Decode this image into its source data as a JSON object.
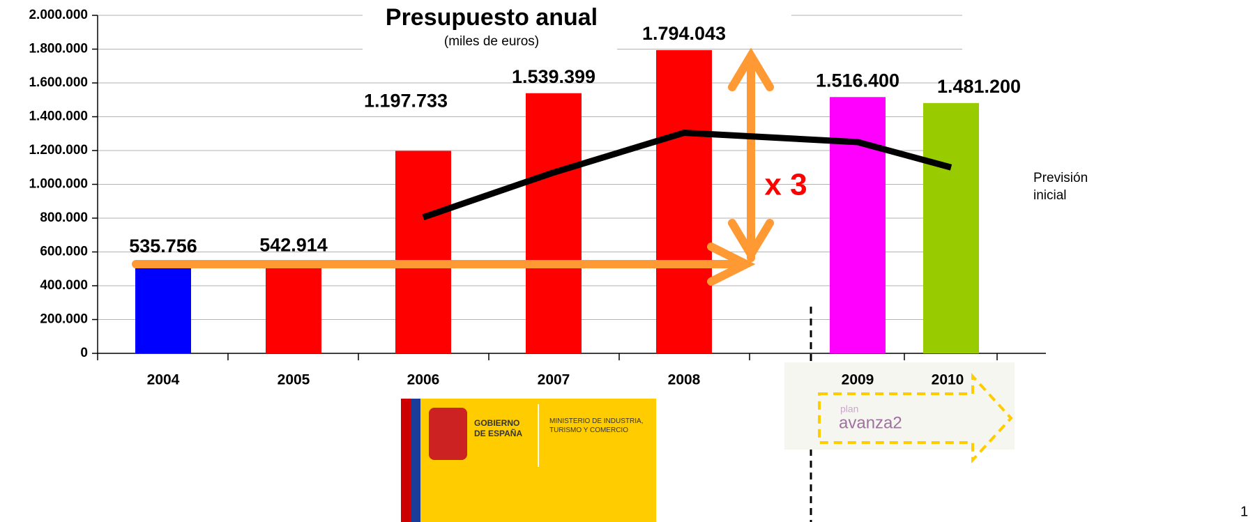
{
  "chart_data": {
    "type": "bar",
    "title": "Presupuesto anual",
    "subtitle": "(miles de euros)",
    "categories": [
      "2004",
      "2005",
      "2006",
      "2007",
      "2008",
      "2009",
      "2010"
    ],
    "values": [
      535756,
      542914,
      1197733,
      1539399,
      1794043,
      1516400,
      1481200
    ],
    "value_labels": [
      "535.756",
      "542.914",
      "1.197.733",
      "1.539.399",
      "1.794.043",
      "1.516.400",
      "1.481.200"
    ],
    "colors": [
      "#0000ff",
      "#ff0000",
      "#ff0000",
      "#ff0000",
      "#ff0000",
      "#ff00ff",
      "#99cc00"
    ],
    "line_series": {
      "name": "Previsión inicial",
      "color": "#000000",
      "values": [
        null,
        null,
        805000,
        1070000,
        1305000,
        1250000,
        1100000
      ]
    },
    "annotation": "x 3",
    "ylim": [
      0,
      2000000
    ],
    "yticks": [
      0,
      {
        "value": 200000,
        "label": "200.000"
      },
      {
        "value": 400000,
        "label": "400.000"
      },
      {
        "value": 600000,
        "label": "600.000"
      },
      {
        "value": 800000,
        "label": "800.000"
      },
      {
        "value": 1000000,
        "label": "1.000.000"
      },
      {
        "value": 1200000,
        "label": "1.200.000"
      },
      {
        "value": 1400000,
        "label": "1.400.000"
      },
      {
        "value": 1600000,
        "label": "1.600.000"
      },
      {
        "value": 1800000,
        "label": "1.800.000"
      },
      {
        "value": 2000000,
        "label": "2.000.000"
      }
    ],
    "grid": true
  },
  "logos": {
    "gobierno": "GOBIERNO DE ESPAÑA",
    "ministerio": "MINISTERIO DE INDUSTRIA, TURISMO Y COMERCIO",
    "plan": "plan",
    "avanza": "avanza2"
  },
  "page_number": "1"
}
